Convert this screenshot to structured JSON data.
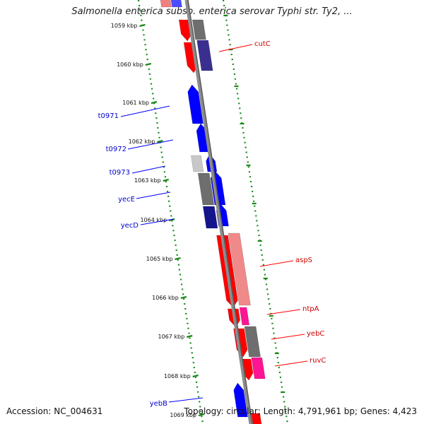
{
  "title": "Salmonella enterica subsp. enterica serovar Typhi str. Ty2, ...",
  "footer": {
    "accession": "Accession: NC_004631",
    "topology": "Topology: circular; Length: 4,791,961 bp; Genes: 4,423"
  },
  "colors": {
    "forward_gene": "#0000ff",
    "reverse_gene": "#ff0000",
    "grey_feature": "#6e6e6e",
    "pink_feature": "#ff1493",
    "tick_marks": "#1a8a1a",
    "forward_label": "#0000cc",
    "reverse_label": "#cc0000",
    "backbone": "#8c8c8c"
  },
  "ruler": {
    "unit": "kbp",
    "ticks": [
      "1059 kbp",
      "1060 kbp",
      "1061 kbp",
      "1062 kbp",
      "1063 kbp",
      "1064 kbp",
      "1065 kbp",
      "1066 kbp",
      "1067 kbp",
      "1068 kbp",
      "1069 kbp"
    ]
  },
  "gene_labels": {
    "forward": [
      "t0971",
      "t0972",
      "t0973",
      "yecE",
      "yecD",
      "yebB"
    ],
    "reverse": [
      "cutC",
      "aspS",
      "ntpA",
      "yebC",
      "ruvC"
    ]
  }
}
